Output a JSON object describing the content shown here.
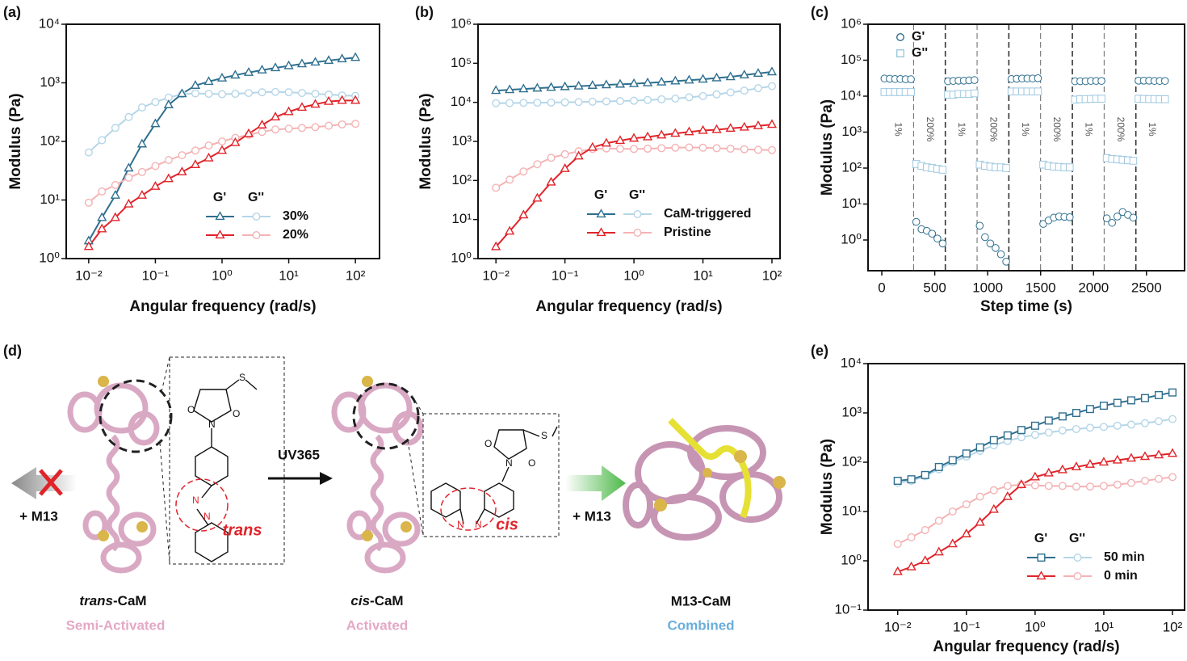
{
  "chart_data": [
    {
      "type": "line",
      "panel": "(a)",
      "x_label": "Angular frequency (rad/s)",
      "y_label": "Modulus (Pa)",
      "xlog": true,
      "ylog": true,
      "xlim": [
        0.0046,
        230
      ],
      "ylim": [
        1,
        10000
      ],
      "xticks": [
        {
          "value": 0.01,
          "label": "10⁻²"
        },
        {
          "value": 0.1,
          "label": "10⁻¹"
        },
        {
          "value": 1,
          "label": "10⁰"
        },
        {
          "value": 10,
          "label": "10¹"
        },
        {
          "value": 100,
          "label": "10²"
        }
      ],
      "yticks": [
        {
          "value": 1,
          "label": "10⁰"
        },
        {
          "value": 10,
          "label": "10¹"
        },
        {
          "value": 100,
          "label": "10²"
        },
        {
          "value": 1000,
          "label": "10³"
        },
        {
          "value": 10000,
          "label": "10⁴"
        }
      ],
      "legend_headers": [
        "G'",
        "G''"
      ],
      "x": [
        0.01,
        0.0158,
        0.0251,
        0.0398,
        0.0631,
        0.1,
        0.158,
        0.251,
        0.398,
        0.631,
        1,
        1.58,
        2.51,
        3.98,
        6.31,
        10,
        15.8,
        25.1,
        39.8,
        63.1,
        100
      ],
      "groups": [
        {
          "name": "30%",
          "storage": {
            "color": "#2f6f8f",
            "marker": "triangle",
            "values": [
              2,
              5,
              12,
              35,
              90,
              200,
              420,
              650,
              900,
              1050,
              1200,
              1350,
              1500,
              1650,
              1800,
              1950,
              2100,
              2250,
              2400,
              2550,
              2700
            ]
          },
          "loss": {
            "color": "#b5d6e8",
            "marker": "circle",
            "values": [
              65,
              105,
              170,
              260,
              380,
              470,
              560,
              640,
              660,
              650,
              640,
              650,
              670,
              690,
              700,
              690,
              670,
              650,
              630,
              610,
              600
            ]
          }
        },
        {
          "name": "20%",
          "storage": {
            "color": "#e0242a",
            "marker": "triangle",
            "values": [
              1.6,
              3.2,
              5,
              8.5,
              12,
              17,
              23,
              30,
              40,
              52,
              70,
              95,
              135,
              190,
              260,
              320,
              380,
              430,
              480,
              500,
              500
            ]
          },
          "loss": {
            "color": "#f4b3b5",
            "marker": "circle",
            "values": [
              9,
              14,
              18,
              24,
              30,
              38,
              48,
              58,
              70,
              85,
              100,
              115,
              130,
              145,
              160,
              165,
              170,
              175,
              185,
              195,
              200
            ]
          }
        }
      ]
    },
    {
      "type": "line",
      "panel": "(b)",
      "x_label": "Angular frequency (rad/s)",
      "y_label": "Modulus (Pa)",
      "xlog": true,
      "ylog": true,
      "xlim": [
        0.0055,
        131
      ],
      "ylim": [
        1,
        1000000
      ],
      "xticks": [
        {
          "value": 0.01,
          "label": "10⁻²"
        },
        {
          "value": 0.1,
          "label": "10⁻¹"
        },
        {
          "value": 1,
          "label": "10⁰"
        },
        {
          "value": 10,
          "label": "10¹"
        },
        {
          "value": 100,
          "label": "10²"
        }
      ],
      "yticks": [
        {
          "value": 1,
          "label": "10⁰"
        },
        {
          "value": 10,
          "label": "10¹"
        },
        {
          "value": 100,
          "label": "10²"
        },
        {
          "value": 1000,
          "label": "10³"
        },
        {
          "value": 10000,
          "label": "10⁴"
        },
        {
          "value": 100000,
          "label": "10⁵"
        },
        {
          "value": 1000000,
          "label": "10⁶"
        }
      ],
      "legend_headers": [
        "G'",
        "G''"
      ],
      "x": [
        0.01,
        0.0158,
        0.0251,
        0.0398,
        0.0631,
        0.1,
        0.158,
        0.251,
        0.398,
        0.631,
        1,
        1.58,
        2.51,
        3.98,
        6.31,
        10,
        15.8,
        25.1,
        39.8,
        63.1,
        100
      ],
      "groups": [
        {
          "name": "CaM-triggered",
          "storage": {
            "color": "#2f6f8f",
            "marker": "triangle",
            "values": [
              20000,
              21000,
              22000,
              23000,
              24000,
              25000,
              26000,
              27000,
              28000,
              29000,
              30000,
              31500,
              33000,
              35000,
              37000,
              39000,
              42000,
              45000,
              50000,
              55000,
              60000
            ]
          },
          "loss": {
            "color": "#b5d6e8",
            "marker": "circle",
            "values": [
              9500,
              9600,
              9700,
              9800,
              9900,
              10000,
              10200,
              10400,
              10600,
              10800,
              11000,
              11500,
              12000,
              12500,
              13500,
              14500,
              16000,
              18000,
              20000,
              23000,
              26000
            ]
          }
        },
        {
          "name": "Pristine",
          "storage": {
            "color": "#e0242a",
            "marker": "triangle",
            "values": [
              2,
              5,
              13,
              35,
              90,
              200,
              420,
              700,
              900,
              1050,
              1200,
              1300,
              1450,
              1600,
              1750,
              1900,
              2000,
              2150,
              2300,
              2500,
              2700
            ]
          },
          "loss": {
            "color": "#f4b3b5",
            "marker": "circle",
            "values": [
              65,
              105,
              170,
              260,
              380,
              470,
              560,
              640,
              660,
              650,
              640,
              650,
              670,
              690,
              700,
              690,
              670,
              650,
              630,
              610,
              600
            ]
          }
        }
      ]
    },
    {
      "type": "scatter",
      "panel": "(c)",
      "x_label": "Step time (s)",
      "y_label": "Modulus (Pa)",
      "xlog": false,
      "ylog": true,
      "xlim": [
        -130,
        2860
      ],
      "ylim": [
        0.14,
        1000000
      ],
      "xticks": [
        0,
        500,
        1000,
        1500,
        2000,
        2500
      ],
      "yticks": [
        {
          "value": 1,
          "label": "10⁰"
        },
        {
          "value": 10,
          "label": "10¹"
        },
        {
          "value": 100,
          "label": "10²"
        },
        {
          "value": 1000,
          "label": "10³"
        },
        {
          "value": 10000,
          "label": "10⁴"
        },
        {
          "value": 100000,
          "label": "10⁵"
        },
        {
          "value": 1000000,
          "label": "10⁶"
        }
      ],
      "steps": [
        {
          "label": "1%",
          "start": 0,
          "end": 300
        },
        {
          "label": "200%",
          "start": 300,
          "end": 600
        },
        {
          "label": "1%",
          "start": 600,
          "end": 900
        },
        {
          "label": "200%",
          "start": 900,
          "end": 1200
        },
        {
          "label": "1%",
          "start": 1200,
          "end": 1500
        },
        {
          "label": "200%",
          "start": 1500,
          "end": 1800
        },
        {
          "label": "1%",
          "start": 1800,
          "end": 2100
        },
        {
          "label": "200%",
          "start": 2100,
          "end": 2400
        },
        {
          "label": "1%",
          "start": 2400,
          "end": 2700
        }
      ],
      "x": [
        25,
        75,
        125,
        175,
        225,
        275,
        325,
        375,
        425,
        475,
        525,
        575,
        625,
        675,
        725,
        775,
        825,
        875,
        925,
        975,
        1025,
        1075,
        1125,
        1175,
        1225,
        1275,
        1325,
        1375,
        1425,
        1475,
        1525,
        1575,
        1625,
        1675,
        1725,
        1775,
        1825,
        1875,
        1925,
        1975,
        2025,
        2075,
        2125,
        2175,
        2225,
        2275,
        2325,
        2375,
        2425,
        2475,
        2525,
        2575,
        2625,
        2675
      ],
      "series": [
        {
          "name": "G'",
          "color": "#2f6f8f",
          "marker": "circle",
          "values": [
            31000,
            30500,
            30000,
            30000,
            29500,
            29500,
            3.2,
            2.0,
            1.8,
            1.5,
            1.1,
            0.8,
            26000,
            26500,
            27000,
            27000,
            27500,
            28000,
            2.5,
            1.2,
            0.8,
            0.6,
            0.4,
            0.25,
            30000,
            30500,
            31000,
            31000,
            31000,
            31500,
            2.8,
            3.5,
            4.2,
            4.5,
            4.4,
            4.3,
            26000,
            26000,
            26000,
            26500,
            26500,
            26500,
            4,
            3,
            4.5,
            6,
            5,
            4.2,
            27000,
            27000,
            27000,
            26500,
            26500,
            26500
          ]
        },
        {
          "name": "G''",
          "color": "#9ec8e0",
          "marker": "square",
          "values": [
            13000,
            13000,
            13000,
            13000,
            13000,
            13000,
            130,
            115,
            105,
            100,
            95,
            90,
            11000,
            11000,
            11500,
            11500,
            11500,
            12000,
            125,
            115,
            110,
            105,
            105,
            100,
            13500,
            13500,
            13500,
            13500,
            13500,
            13500,
            125,
            115,
            110,
            108,
            105,
            105,
            8000,
            8200,
            8300,
            8400,
            8500,
            8500,
            190,
            180,
            175,
            170,
            165,
            160,
            8500,
            8400,
            8300,
            8300,
            8200,
            8200
          ]
        }
      ]
    },
    {
      "type": "line",
      "panel": "(e)",
      "x_label": "Angular frequency (rad/s)",
      "y_label": "Modulus (Pa)",
      "xlog": true,
      "ylog": true,
      "xlim": [
        0.0037,
        150
      ],
      "ylim": [
        0.1,
        10000
      ],
      "xticks": [
        {
          "value": 0.01,
          "label": "10⁻²"
        },
        {
          "value": 0.1,
          "label": "10⁻¹"
        },
        {
          "value": 1,
          "label": "10⁰"
        },
        {
          "value": 10,
          "label": "10¹"
        },
        {
          "value": 100,
          "label": "10²"
        }
      ],
      "yticks": [
        {
          "value": 0.1,
          "label": "10⁻¹"
        },
        {
          "value": 1,
          "label": "10⁰"
        },
        {
          "value": 10,
          "label": "10¹"
        },
        {
          "value": 100,
          "label": "10²"
        },
        {
          "value": 1000,
          "label": "10³"
        },
        {
          "value": 10000,
          "label": "10⁴"
        }
      ],
      "legend_headers": [
        "G'",
        "G''"
      ],
      "x": [
        0.01,
        0.0158,
        0.0251,
        0.0398,
        0.0631,
        0.1,
        0.158,
        0.251,
        0.398,
        0.631,
        1,
        1.58,
        2.51,
        3.98,
        6.31,
        10,
        15.8,
        25.1,
        39.8,
        63.1,
        100
      ],
      "groups": [
        {
          "name": "50 min",
          "storage": {
            "color": "#2f6f8f",
            "marker": "square",
            "values": [
              42,
              45,
              55,
              80,
              110,
              150,
              200,
              280,
              350,
              450,
              550,
              700,
              850,
              1000,
              1200,
              1400,
              1600,
              1800,
              2000,
              2300,
              2600
            ]
          },
          "loss": {
            "color": "#b5d6e8",
            "marker": "circle",
            "values": [
              38,
              42,
              52,
              72,
              100,
              130,
              170,
              220,
              270,
              320,
              360,
              400,
              440,
              470,
              500,
              520,
              550,
              580,
              620,
              680,
              750
            ]
          }
        },
        {
          "name": "0 min",
          "storage": {
            "color": "#e0242a",
            "marker": "triangle",
            "values": [
              0.6,
              0.75,
              1.0,
              1.5,
              2.2,
              3.5,
              6,
              11,
              20,
              35,
              50,
              60,
              70,
              80,
              90,
              100,
              110,
              120,
              130,
              140,
              150
            ]
          },
          "loss": {
            "color": "#f4b3b5",
            "marker": "circle",
            "values": [
              2.2,
              3,
              4.2,
              6.5,
              10,
              14,
              20,
              27,
              33,
              35,
              34,
              33,
              33,
              32,
              32,
              33,
              35,
              38,
              42,
              46,
              50
            ]
          }
        }
      ]
    }
  ],
  "diagram": {
    "panel": "(d)",
    "blocked_label": "+ M13",
    "arrow_label": "UV365",
    "added_label": "+ M13",
    "trans_label": "trans",
    "cis_label": "cis",
    "atoms_trans": [
      "O",
      "N",
      "O",
      "S",
      "N",
      "N"
    ],
    "atoms_cis": [
      "O",
      "N",
      "O",
      "S",
      "N",
      "N"
    ],
    "captions": [
      {
        "italic": "trans",
        "rest": "-CaM",
        "state": "Semi-Activated"
      },
      {
        "italic": "cis",
        "rest": "-CaM",
        "state": "Activated"
      },
      {
        "name": "M13-CaM",
        "state": "Combined"
      }
    ]
  }
}
